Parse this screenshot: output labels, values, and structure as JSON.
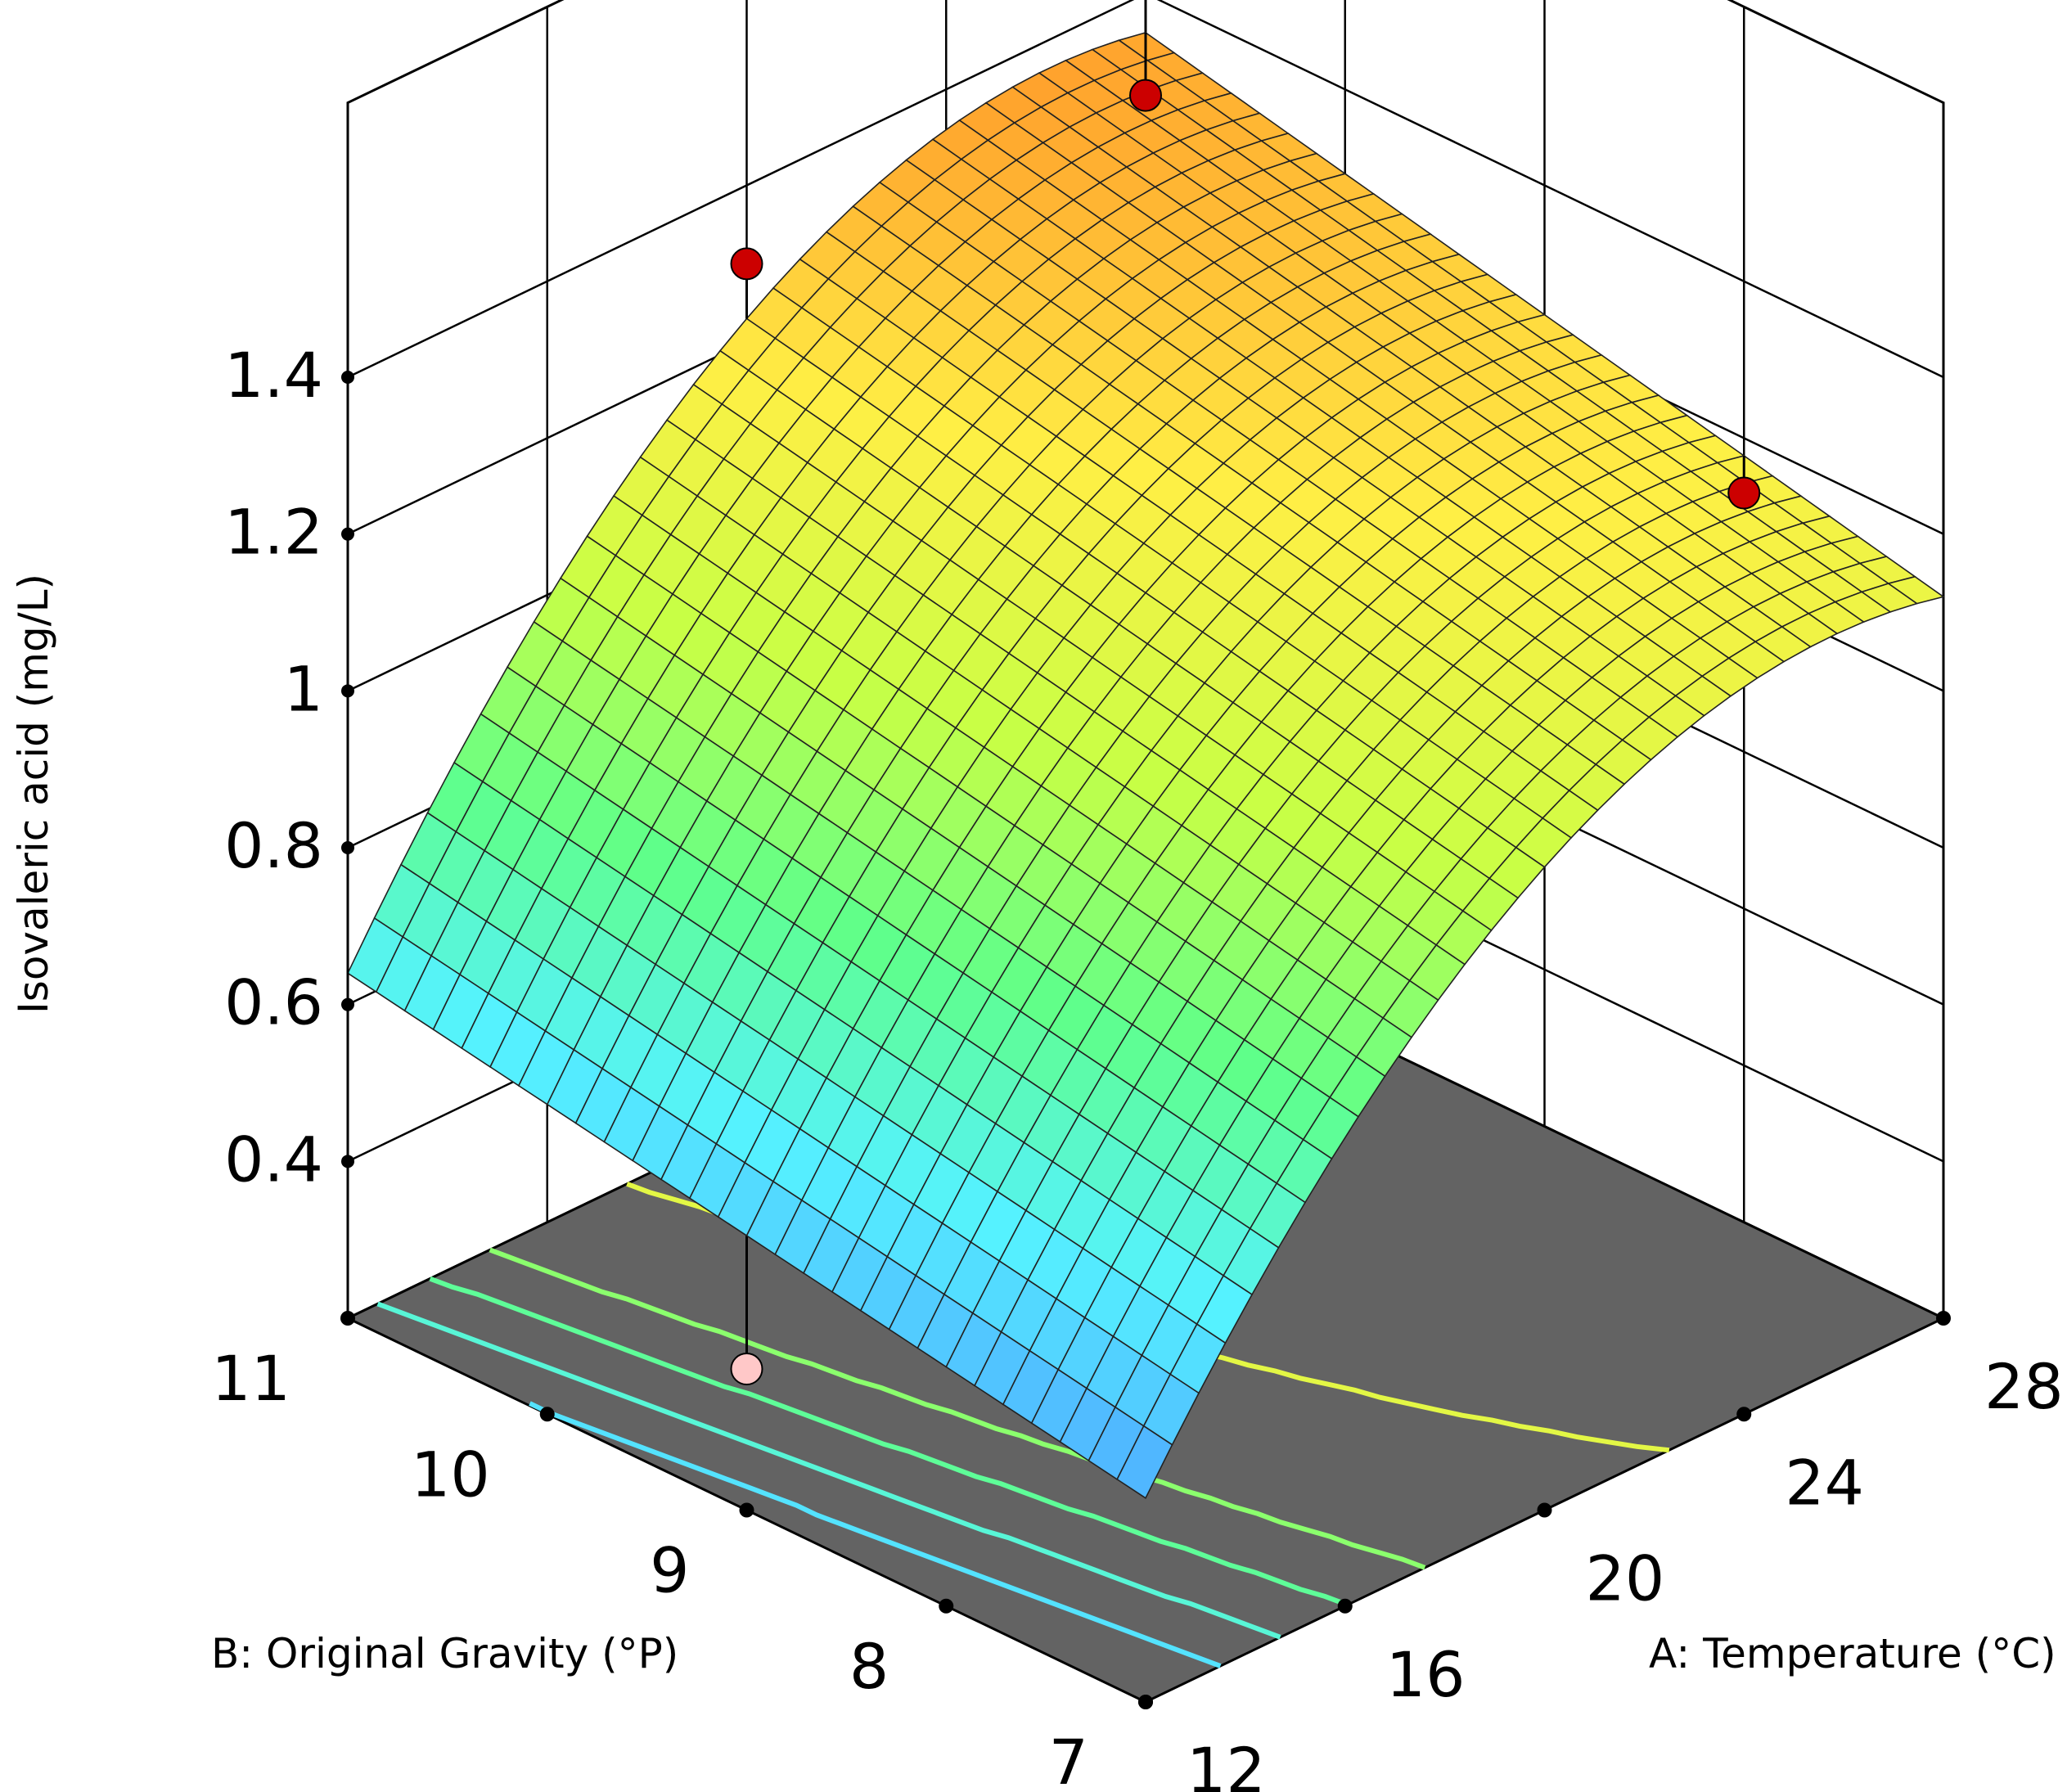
{
  "chart_data": {
    "type": "surface3d",
    "title": "",
    "zlabel": "Isovaleric acid (mg/L)",
    "xlabel": "A: Temperature (°C)",
    "ylabel": "B: Original Gravity (°P)",
    "x_ticks": [
      "12",
      "16",
      "20",
      "24",
      "28"
    ],
    "y_ticks": [
      "7",
      "8",
      "9",
      "10",
      "11"
    ],
    "z_ticks": [
      "0.4",
      "0.6",
      "0.8",
      "1",
      "1.2",
      "1.4"
    ],
    "xlim": [
      12,
      28
    ],
    "ylim": [
      7,
      11
    ],
    "zlim": [
      0.2,
      1.4
    ],
    "surface": {
      "model": "quadratic",
      "description_points": [
        {
          "temperature": 12,
          "gravity": 11,
          "isovaleric_acid": 0.64
        },
        {
          "temperature": 12,
          "gravity": 7,
          "isovaleric_acid": 0.46
        },
        {
          "temperature": 28,
          "gravity": 11,
          "isovaleric_acid": 1.35
        },
        {
          "temperature": 28,
          "gravity": 7,
          "isovaleric_acid": 1.12
        },
        {
          "temperature": 22,
          "gravity": 11,
          "isovaleric_acid": 1.28
        },
        {
          "temperature": 22,
          "gravity": 7,
          "isovaleric_acid": 1.03
        }
      ]
    },
    "design_points": [
      {
        "temperature": 28,
        "gravity": 11,
        "isovaleric_acid": 1.27,
        "position": "above"
      },
      {
        "temperature": 20,
        "gravity": 11,
        "isovaleric_acid": 1.3,
        "position": "above"
      },
      {
        "temperature": 28,
        "gravity": 8,
        "isovaleric_acid": 1.13,
        "position": "above"
      },
      {
        "temperature": 12,
        "gravity": 9,
        "isovaleric_acid": 0.38,
        "position": "below"
      }
    ],
    "contour_levels": [
      0.6,
      0.7,
      0.8,
      0.9,
      1.1,
      1.3
    ],
    "colors": {
      "floor": "#636363",
      "point_above": "#cc0000",
      "point_below": "#ffc8c8",
      "colormap": [
        "#4fa7ff",
        "#55f2ff",
        "#5fff8a",
        "#c8ff45",
        "#ffef45",
        "#ff9a2a"
      ]
    },
    "grid": true
  }
}
